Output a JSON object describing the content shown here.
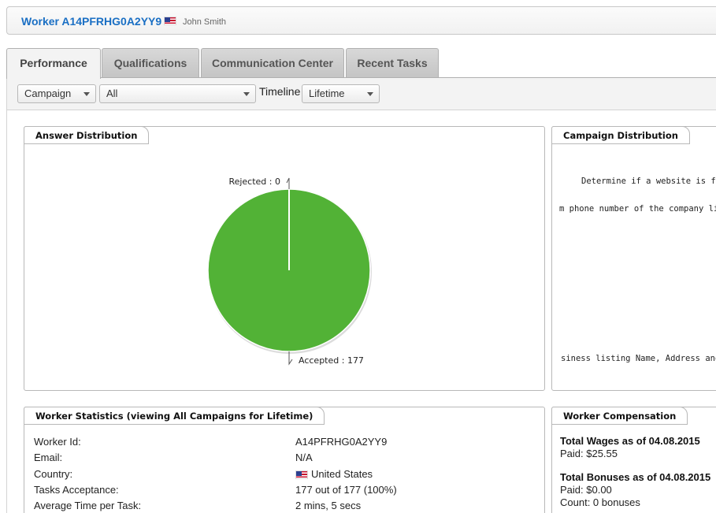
{
  "header": {
    "worker_title": "Worker A14PFRHG0A2YY9",
    "worker_name": "John Smith",
    "flag_icon": "us-flag-icon"
  },
  "tabs": [
    {
      "label": "Performance",
      "active": true
    },
    {
      "label": "Qualifications",
      "active": false
    },
    {
      "label": "Communication Center",
      "active": false
    },
    {
      "label": "Recent Tasks",
      "active": false
    }
  ],
  "filters": {
    "campaign_select": "Campaign",
    "scope_select": "All",
    "timeline_label": "Timeline",
    "timeline_select": "Lifetime"
  },
  "answer_distribution": {
    "title": "Answer Distribution",
    "rejected_label": "Rejected : 0",
    "accepted_label": "Accepted : 177"
  },
  "chart_data": {
    "type": "pie",
    "categories": [
      "Rejected",
      "Accepted"
    ],
    "values": [
      0,
      177
    ],
    "colors": [
      "#ffffff",
      "#52b236"
    ]
  },
  "campaign_distribution": {
    "title": "Campaign Distribution",
    "line1": "Determine if a website is for a g",
    "line2": "m phone number of the company list",
    "line3": "siness listing Name, Address and Pho"
  },
  "worker_statistics": {
    "title": "Worker Statistics (viewing All Campaigns for Lifetime)",
    "rows": [
      {
        "label": "Worker Id:",
        "value": "A14PFRHG0A2YY9"
      },
      {
        "label": "Email:",
        "value": "N/A"
      },
      {
        "label": "Country:",
        "value": "United States"
      },
      {
        "label": "Tasks Acceptance:",
        "value": "177 out of 177 (100%)"
      },
      {
        "label": "Average Time per Task:",
        "value": "2 mins, 5 secs"
      }
    ]
  },
  "worker_compensation": {
    "title": "Worker Compensation",
    "wages_title": "Total Wages as of 04.08.2015",
    "wages_paid": "Paid: $25.55",
    "bonuses_title": "Total Bonuses as of 04.08.2015",
    "bonuses_paid": "Paid: $0.00",
    "bonuses_count": "Count: 0 bonuses"
  }
}
